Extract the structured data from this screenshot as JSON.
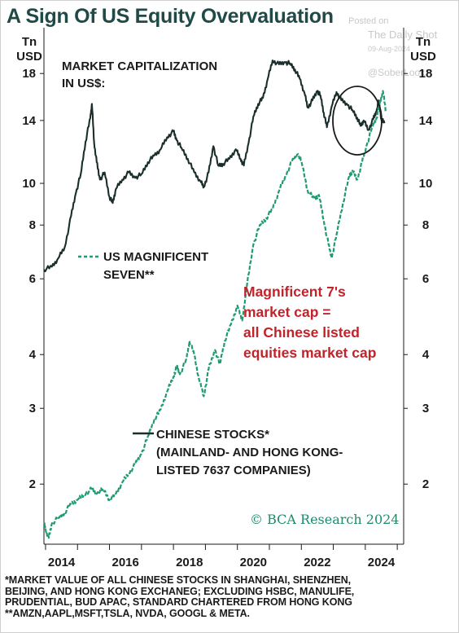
{
  "title": "A Sign Of US Equity Overvaluation",
  "watermark": {
    "posted_on": "Posted on",
    "source": "The Daily Shot",
    "date": "09-Aug-2024",
    "handle": "@SoberLook"
  },
  "chart_data": {
    "type": "line",
    "y_scale": "log",
    "ylim": [
      1.45,
      23
    ],
    "y_unit_left": [
      "Tn",
      "USD"
    ],
    "y_unit_right": [
      "Tn",
      "USD"
    ],
    "y_ticks": [
      2,
      3,
      4,
      6,
      8,
      10,
      14,
      18
    ],
    "x_ticks": [
      "2014",
      "2016",
      "2018",
      "2020",
      "2022",
      "2024"
    ],
    "xlim": [
      2013.95,
      2025.2
    ],
    "annotations": {
      "chinese_label": [
        "MARKET CAPITALIZATION",
        "IN US$:"
      ],
      "mag7_legend": [
        "US MAGNIFICENT",
        "SEVEN**"
      ],
      "chinese_legend": [
        "CHINESE STOCKS*",
        "(MAINLAND- AND HONG KONG-",
        "LISTED 7637 COMPANIES)"
      ],
      "highlight": [
        "Magnificent 7's",
        "market cap =",
        "all Chinese listed",
        "equities market cap"
      ],
      "copyright": "© BCA Research 2024"
    },
    "series": [
      {
        "name": "CHINESE STOCKS*",
        "color": "#1a2e2c",
        "style": "solid",
        "points": [
          [
            2013.95,
            6.3
          ],
          [
            2014.2,
            6.4
          ],
          [
            2014.4,
            6.7
          ],
          [
            2014.6,
            7.1
          ],
          [
            2014.8,
            8.4
          ],
          [
            2014.95,
            9.5
          ],
          [
            2015.1,
            10.5
          ],
          [
            2015.25,
            12.5
          ],
          [
            2015.4,
            14.2
          ],
          [
            2015.45,
            15.3
          ],
          [
            2015.52,
            12.4
          ],
          [
            2015.6,
            11.2
          ],
          [
            2015.7,
            10.2
          ],
          [
            2015.85,
            10.6
          ],
          [
            2016.0,
            9.3
          ],
          [
            2016.1,
            9.0
          ],
          [
            2016.2,
            9.7
          ],
          [
            2016.4,
            10.2
          ],
          [
            2016.6,
            10.6
          ],
          [
            2016.8,
            10.3
          ],
          [
            2017.0,
            10.5
          ],
          [
            2017.2,
            11.2
          ],
          [
            2017.4,
            11.6
          ],
          [
            2017.6,
            12.0
          ],
          [
            2017.8,
            12.8
          ],
          [
            2018.0,
            13.2
          ],
          [
            2018.1,
            12.6
          ],
          [
            2018.25,
            12.1
          ],
          [
            2018.45,
            11.4
          ],
          [
            2018.65,
            10.6
          ],
          [
            2018.85,
            10.1
          ],
          [
            2018.95,
            9.8
          ],
          [
            2019.1,
            10.6
          ],
          [
            2019.25,
            12.2
          ],
          [
            2019.4,
            11.0
          ],
          [
            2019.55,
            11.1
          ],
          [
            2019.75,
            11.4
          ],
          [
            2019.95,
            12.0
          ],
          [
            2020.1,
            11.4
          ],
          [
            2020.2,
            11.0
          ],
          [
            2020.35,
            12.4
          ],
          [
            2020.5,
            14.3
          ],
          [
            2020.65,
            15.3
          ],
          [
            2020.8,
            15.8
          ],
          [
            2020.95,
            17.5
          ],
          [
            2021.1,
            19.3
          ],
          [
            2021.3,
            18.9
          ],
          [
            2021.5,
            19.1
          ],
          [
            2021.65,
            19.0
          ],
          [
            2021.8,
            18.4
          ],
          [
            2021.95,
            17.5
          ],
          [
            2022.1,
            16.2
          ],
          [
            2022.2,
            15.0
          ],
          [
            2022.35,
            15.6
          ],
          [
            2022.5,
            16.4
          ],
          [
            2022.6,
            16.0
          ],
          [
            2022.7,
            14.6
          ],
          [
            2022.8,
            13.5
          ],
          [
            2022.95,
            15.1
          ],
          [
            2023.1,
            16.3
          ],
          [
            2023.25,
            15.6
          ],
          [
            2023.45,
            15.2
          ],
          [
            2023.6,
            14.8
          ],
          [
            2023.75,
            14.2
          ],
          [
            2023.85,
            13.6
          ],
          [
            2023.95,
            14.0
          ],
          [
            2024.1,
            13.3
          ],
          [
            2024.25,
            14.1
          ],
          [
            2024.35,
            14.7
          ],
          [
            2024.42,
            15.6
          ],
          [
            2024.5,
            14.1
          ],
          [
            2024.6,
            13.8
          ]
        ]
      },
      {
        "name": "US MAGNIFICENT SEVEN**",
        "color": "#1f9a73",
        "style": "dashed",
        "points": [
          [
            2013.95,
            1.62
          ],
          [
            2014.0,
            1.57
          ],
          [
            2014.1,
            1.5
          ],
          [
            2014.2,
            1.62
          ],
          [
            2014.4,
            1.67
          ],
          [
            2014.6,
            1.72
          ],
          [
            2014.8,
            1.8
          ],
          [
            2015.0,
            1.84
          ],
          [
            2015.2,
            1.89
          ],
          [
            2015.45,
            1.95
          ],
          [
            2015.6,
            1.9
          ],
          [
            2015.8,
            1.95
          ],
          [
            2016.0,
            1.84
          ],
          [
            2016.2,
            1.9
          ],
          [
            2016.4,
            2.02
          ],
          [
            2016.6,
            2.12
          ],
          [
            2016.8,
            2.22
          ],
          [
            2017.0,
            2.35
          ],
          [
            2017.2,
            2.58
          ],
          [
            2017.4,
            2.82
          ],
          [
            2017.6,
            2.98
          ],
          [
            2017.8,
            3.28
          ],
          [
            2018.0,
            3.55
          ],
          [
            2018.1,
            3.75
          ],
          [
            2018.2,
            3.6
          ],
          [
            2018.4,
            3.9
          ],
          [
            2018.5,
            4.3
          ],
          [
            2018.65,
            4.0
          ],
          [
            2018.8,
            3.5
          ],
          [
            2018.95,
            3.2
          ],
          [
            2019.1,
            3.7
          ],
          [
            2019.3,
            4.1
          ],
          [
            2019.45,
            3.8
          ],
          [
            2019.6,
            4.3
          ],
          [
            2019.8,
            4.7
          ],
          [
            2020.0,
            5.2
          ],
          [
            2020.15,
            4.8
          ],
          [
            2020.3,
            5.8
          ],
          [
            2020.5,
            7.2
          ],
          [
            2020.7,
            8.0
          ],
          [
            2020.9,
            8.3
          ],
          [
            2021.1,
            8.7
          ],
          [
            2021.3,
            9.6
          ],
          [
            2021.5,
            10.4
          ],
          [
            2021.7,
            11.2
          ],
          [
            2021.9,
            11.7
          ],
          [
            2022.0,
            11.3
          ],
          [
            2022.2,
            9.6
          ],
          [
            2022.4,
            9.2
          ],
          [
            2022.55,
            9.4
          ],
          [
            2022.7,
            8.2
          ],
          [
            2022.85,
            7.2
          ],
          [
            2022.95,
            6.7
          ],
          [
            2023.1,
            7.6
          ],
          [
            2023.3,
            9.0
          ],
          [
            2023.5,
            10.4
          ],
          [
            2023.6,
            10.7
          ],
          [
            2023.75,
            10.2
          ],
          [
            2023.9,
            11.2
          ],
          [
            2024.05,
            12.3
          ],
          [
            2024.2,
            13.4
          ],
          [
            2024.35,
            14.2
          ],
          [
            2024.45,
            15.3
          ],
          [
            2024.55,
            16.4
          ],
          [
            2024.65,
            14.6
          ]
        ]
      }
    ]
  },
  "footnotes": [
    "*MARKET VALUE OF ALL CHINESE STOCKS IN SHANGHAI, SHENZHEN,",
    "BEIJING, AND HONG KONG EXCHANEG; EXCLUDING HSBC, MANULIFE,",
    "PRUDENTIAL, BUD APAC, STANDARD CHARTERED FROM HONG KONG",
    "**AMZN,AAPL,MSFT,TSLA, NVDA, GOOGL & META."
  ]
}
